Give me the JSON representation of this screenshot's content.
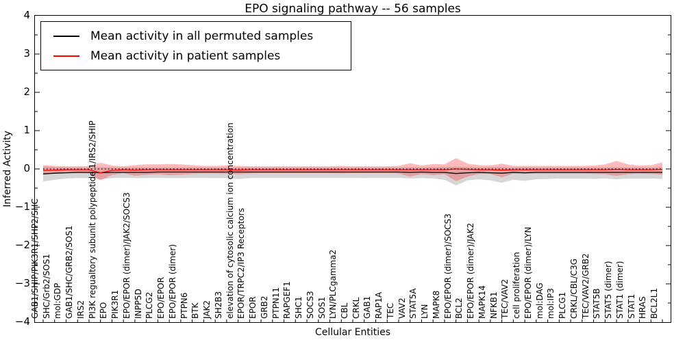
{
  "title": "EPO signaling pathway -- 56 samples",
  "axes": {
    "ylabel": "Inferred Activity",
    "xlabel": "Cellular Entities"
  },
  "legend": {
    "entries": [
      {
        "label": "Mean activity in all permuted samples",
        "color": "#000000"
      },
      {
        "label": "Mean activity in patient samples",
        "color": "#ff0000"
      }
    ]
  },
  "chart_data": {
    "type": "line",
    "title": "EPO signaling pathway -- 56 samples",
    "xlabel": "Cellular Entities",
    "ylabel": "Inferred Activity",
    "ylim": [
      -4,
      4
    ],
    "ytick_values": [
      4,
      3,
      2,
      1,
      0,
      -1,
      -2,
      -3,
      -4
    ],
    "ytick_labels": [
      "4",
      "3",
      "2",
      "1",
      "0",
      "−1",
      "−2",
      "−3",
      "−4"
    ],
    "y_minor_step": 0.5,
    "grid": false,
    "legend_position": "upper left",
    "zero_line": {
      "value": 0.0,
      "style": "dotted",
      "color": "#000000"
    },
    "categories": [
      "GAB1/SHIP/PIK3R1/SHP2/SHC",
      "SHC/Grb2/SOS1",
      "mol:GDP",
      "GAB1/SHC/GRB2/SOS1",
      "IRS2",
      "PI3K regualtory subunit polypeptide 1/IRS2/SHIP",
      "EPO",
      "PIK3R1",
      "EPO/EPOR (dimer)/JAK2/SOCS3",
      "INPP5D",
      "PLCG2",
      "EPO/EPOR",
      "EPO/EPOR (dimer)",
      "PTPN6",
      "BTK",
      "JAK2",
      "SH2B3",
      "elevation of cytosolic calcium ion concentration",
      "EPOR/TRPC2/IP3 Receptors",
      "EPOR",
      "GRB2",
      "PTPN11",
      "RAPGEF1",
      "SHC1",
      "SOCS3",
      "SOS1",
      "LYN/PLCgamma2",
      "CBL",
      "CRKL",
      "GAB1",
      "RAP1A",
      "TEC",
      "VAV2",
      "STAT5A",
      "LYN",
      "MAPK8",
      "EPO/EPOR (dimer)/SOCS3",
      "BCL2",
      "EPO/EPOR (dimer)/JAK2",
      "MAPK14",
      "NFKB1",
      "TEC/VAV2",
      "cell proliferation",
      "EPO/EPOR (dimer)/LYN",
      "mol:DAG",
      "mol:IP3",
      "PLCG1",
      "CRKL/CBL/C3G",
      "TEC/VAV2/GRB2",
      "STAT5B",
      "STAT5 (dimer)",
      "STAT1 (dimer)",
      "STAT1",
      "HRAS",
      "BCL2L1"
    ],
    "series": [
      {
        "name": "Mean activity in all permuted samples",
        "color": "#000000",
        "band_color": "#787878",
        "band_opacity": 0.3,
        "values": [
          -0.13,
          -0.11,
          -0.1,
          -0.09,
          -0.09,
          -0.1,
          -0.09,
          -0.09,
          -0.09,
          -0.09,
          -0.08,
          -0.08,
          -0.08,
          -0.08,
          -0.08,
          -0.08,
          -0.08,
          -0.08,
          -0.08,
          -0.08,
          -0.08,
          -0.08,
          -0.08,
          -0.08,
          -0.08,
          -0.08,
          -0.08,
          -0.08,
          -0.08,
          -0.08,
          -0.08,
          -0.08,
          -0.09,
          -0.08,
          -0.09,
          -0.09,
          -0.12,
          -0.1,
          -0.09,
          -0.1,
          -0.11,
          -0.09,
          -0.1,
          -0.09,
          -0.09,
          -0.09,
          -0.09,
          -0.09,
          -0.09,
          -0.09,
          -0.09,
          -0.09,
          -0.09,
          -0.09,
          -0.09
        ],
        "band_upper": [
          0.07,
          0.05,
          0.04,
          0.04,
          0.04,
          0.05,
          0.04,
          0.04,
          0.04,
          0.04,
          0.04,
          0.04,
          0.04,
          0.04,
          0.04,
          0.04,
          0.04,
          0.04,
          0.04,
          0.04,
          0.04,
          0.04,
          0.04,
          0.04,
          0.04,
          0.04,
          0.04,
          0.04,
          0.04,
          0.04,
          0.04,
          0.04,
          0.05,
          0.04,
          0.05,
          0.05,
          0.06,
          0.05,
          0.04,
          0.05,
          0.05,
          0.04,
          0.05,
          0.04,
          0.04,
          0.04,
          0.04,
          0.04,
          0.04,
          0.04,
          0.05,
          0.04,
          0.04,
          0.04,
          0.05
        ],
        "band_lower": [
          -0.33,
          -0.28,
          -0.25,
          -0.24,
          -0.24,
          -0.27,
          -0.24,
          -0.23,
          -0.24,
          -0.24,
          -0.23,
          -0.24,
          -0.24,
          -0.23,
          -0.23,
          -0.24,
          -0.24,
          -0.26,
          -0.24,
          -0.23,
          -0.23,
          -0.23,
          -0.23,
          -0.23,
          -0.23,
          -0.23,
          -0.23,
          -0.23,
          -0.24,
          -0.23,
          -0.23,
          -0.23,
          -0.25,
          -0.24,
          -0.25,
          -0.28,
          -0.43,
          -0.3,
          -0.27,
          -0.3,
          -0.36,
          -0.28,
          -0.31,
          -0.27,
          -0.26,
          -0.25,
          -0.25,
          -0.25,
          -0.26,
          -0.25,
          -0.27,
          -0.25,
          -0.25,
          -0.25,
          -0.26
        ]
      },
      {
        "name": "Mean activity in patient samples",
        "color": "#ff0000",
        "band_color": "#ff3c3c",
        "band_opacity": 0.35,
        "values": [
          -0.04,
          -0.03,
          -0.02,
          -0.02,
          -0.02,
          -0.1,
          -0.04,
          -0.02,
          -0.03,
          -0.02,
          -0.02,
          -0.02,
          -0.02,
          -0.02,
          -0.02,
          -0.02,
          -0.02,
          -0.03,
          -0.02,
          -0.02,
          -0.02,
          -0.02,
          -0.02,
          -0.02,
          -0.02,
          -0.02,
          -0.02,
          -0.02,
          -0.02,
          -0.02,
          -0.02,
          -0.02,
          -0.02,
          -0.02,
          -0.02,
          -0.02,
          0.0,
          -0.01,
          -0.02,
          -0.02,
          -0.03,
          -0.02,
          -0.02,
          -0.02,
          -0.02,
          -0.02,
          -0.02,
          -0.02,
          -0.02,
          -0.02,
          -0.01,
          -0.02,
          -0.02,
          -0.02,
          -0.01
        ],
        "band_upper": [
          0.1,
          0.08,
          0.07,
          0.07,
          0.08,
          0.16,
          0.09,
          0.07,
          0.1,
          0.12,
          0.12,
          0.13,
          0.12,
          0.1,
          0.08,
          0.08,
          0.09,
          0.08,
          0.07,
          0.07,
          0.07,
          0.07,
          0.07,
          0.07,
          0.07,
          0.07,
          0.08,
          0.07,
          0.07,
          0.07,
          0.07,
          0.08,
          0.15,
          0.09,
          0.13,
          0.12,
          0.28,
          0.14,
          0.1,
          0.09,
          0.14,
          0.08,
          0.08,
          0.08,
          0.08,
          0.08,
          0.08,
          0.08,
          0.09,
          0.12,
          0.21,
          0.12,
          0.09,
          0.1,
          0.17
        ],
        "band_lower": [
          -0.14,
          -0.12,
          -0.11,
          -0.11,
          -0.12,
          -0.3,
          -0.16,
          -0.11,
          -0.18,
          -0.15,
          -0.14,
          -0.16,
          -0.15,
          -0.13,
          -0.12,
          -0.12,
          -0.13,
          -0.14,
          -0.12,
          -0.11,
          -0.11,
          -0.11,
          -0.11,
          -0.11,
          -0.11,
          -0.11,
          -0.12,
          -0.11,
          -0.11,
          -0.11,
          -0.11,
          -0.12,
          -0.2,
          -0.13,
          -0.16,
          -0.14,
          -0.32,
          -0.2,
          -0.13,
          -0.13,
          -0.22,
          -0.12,
          -0.13,
          -0.12,
          -0.12,
          -0.12,
          -0.12,
          -0.12,
          -0.13,
          -0.14,
          -0.18,
          -0.14,
          -0.12,
          -0.13,
          -0.15
        ]
      }
    ]
  }
}
